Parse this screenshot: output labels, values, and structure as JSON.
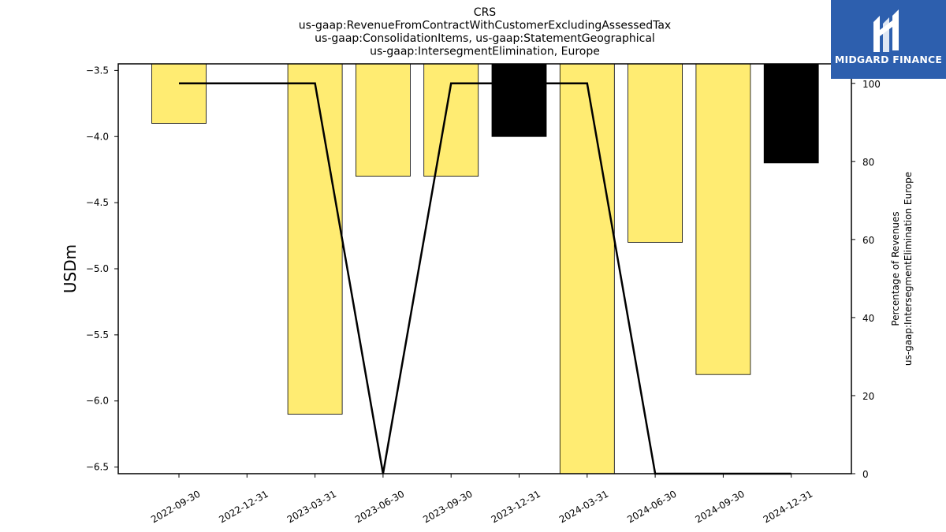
{
  "chart_data": {
    "type": "bar",
    "title_lines": [
      "CRS",
      "us-gaap:RevenueFromContractWithCustomerExcludingAssessedTax",
      "us-gaap:ConsolidationItems, us-gaap:StatementGeographical",
      "us-gaap:IntersegmentElimination, Europe"
    ],
    "ylabel": "USDm",
    "y2label_lines": [
      "Percentage of Revenues",
      "us-gaap:IntersegmentElimination Europe"
    ],
    "categories": [
      "2022-09-30",
      "2022-12-31",
      "2023-03-31",
      "2023-06-30",
      "2023-09-30",
      "2023-12-31",
      "2024-03-31",
      "2024-06-30",
      "2024-09-30",
      "2024-12-31"
    ],
    "bar_series": {
      "values": [
        -3.9,
        null,
        -6.1,
        -4.3,
        -4.3,
        -4.0,
        -6.6,
        -4.8,
        -5.8,
        -4.2
      ],
      "colors": [
        "#ffec72",
        null,
        "#ffec72",
        "#ffec72",
        "#ffec72",
        "#000000",
        "#ffec72",
        "#ffec72",
        "#ffec72",
        "#000000"
      ]
    },
    "line_series": {
      "values": [
        100,
        null,
        100,
        0,
        100,
        null,
        100,
        0,
        null,
        0
      ],
      "color": "#000000"
    },
    "yticks": [
      "-3.5",
      "-4.0",
      "-4.5",
      "-5.0",
      "-5.5",
      "-6.0",
      "-6.5"
    ],
    "ylim": [
      -6.55,
      -3.45
    ],
    "y2ticks": [
      "0",
      "20",
      "40",
      "60",
      "80",
      "100"
    ],
    "y2lim": [
      0,
      105
    ],
    "grid": false
  },
  "logo": {
    "text": "MIDGARD FINANCE",
    "background": "#2d5fae",
    "icon": "midgard-logo-icon"
  }
}
